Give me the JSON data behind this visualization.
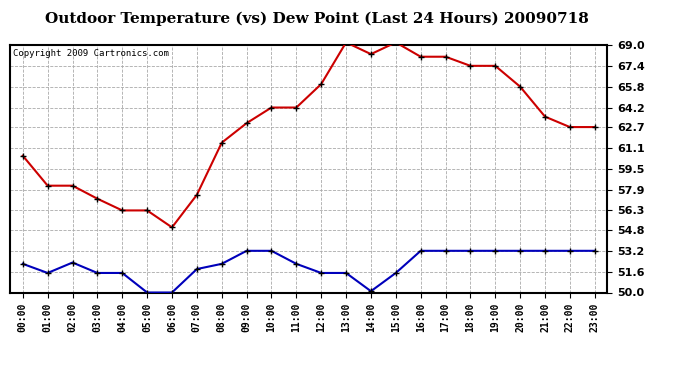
{
  "title": "Outdoor Temperature (vs) Dew Point (Last 24 Hours) 20090718",
  "copyright": "Copyright 2009 Cartronics.com",
  "hours": [
    "00:00",
    "01:00",
    "02:00",
    "03:00",
    "04:00",
    "05:00",
    "06:00",
    "07:00",
    "08:00",
    "09:00",
    "10:00",
    "11:00",
    "12:00",
    "13:00",
    "14:00",
    "15:00",
    "16:00",
    "17:00",
    "18:00",
    "19:00",
    "20:00",
    "21:00",
    "22:00",
    "23:00"
  ],
  "temp_red": [
    60.5,
    58.2,
    58.2,
    57.2,
    56.3,
    56.3,
    55.0,
    57.5,
    61.5,
    63.0,
    64.2,
    64.2,
    66.0,
    69.2,
    68.3,
    69.2,
    68.1,
    68.1,
    67.4,
    67.4,
    65.8,
    63.5,
    62.7,
    62.7
  ],
  "dew_blue": [
    52.2,
    51.5,
    52.3,
    51.5,
    51.5,
    50.0,
    50.0,
    51.8,
    52.2,
    53.2,
    53.2,
    52.2,
    51.5,
    51.5,
    50.1,
    51.5,
    53.2,
    53.2,
    53.2,
    53.2,
    53.2,
    53.2,
    53.2,
    53.2
  ],
  "ylim_min": 50.0,
  "ylim_max": 69.0,
  "yticks": [
    50.0,
    51.6,
    53.2,
    54.8,
    56.3,
    57.9,
    59.5,
    61.1,
    62.7,
    64.2,
    65.8,
    67.4,
    69.0
  ],
  "temp_color": "#cc0000",
  "dew_color": "#0000bb",
  "grid_color": "#aaaaaa",
  "bg_color": "#ffffff",
  "title_fontsize": 11,
  "copyright_fontsize": 6.5,
  "tick_fontsize": 7,
  "ytick_fontsize": 8,
  "line_width": 1.5,
  "marker_size": 4
}
